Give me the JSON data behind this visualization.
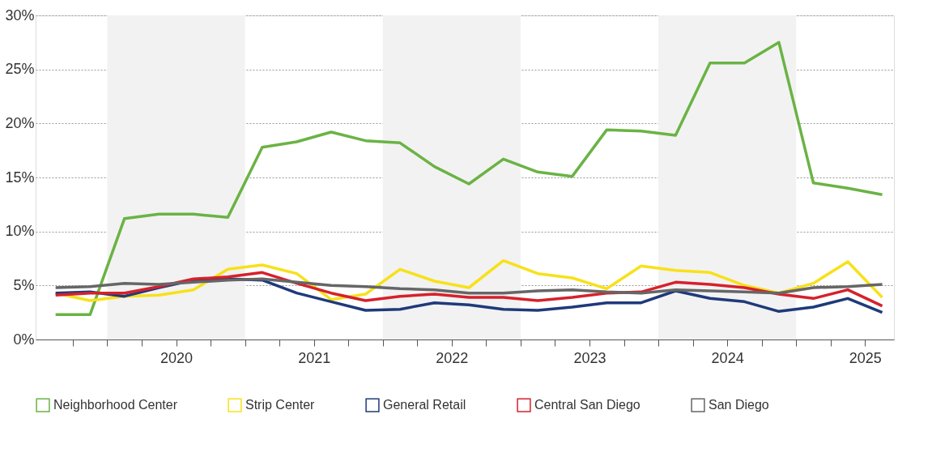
{
  "chart_data": {
    "type": "line",
    "x": [
      2019.625,
      2019.875,
      2020.125,
      2020.375,
      2020.625,
      2020.875,
      2021.125,
      2021.375,
      2021.625,
      2021.875,
      2022.125,
      2022.375,
      2022.625,
      2022.875,
      2023.125,
      2023.375,
      2023.625,
      2023.875,
      2024.125,
      2024.375,
      2024.625,
      2024.875,
      2025.125,
      2025.375,
      2025.625
    ],
    "series": [
      {
        "name": "Neighborhood Center",
        "color": "#6ab344",
        "values": [
          2.3,
          2.3,
          11.2,
          11.6,
          11.6,
          11.3,
          17.8,
          18.3,
          19.2,
          18.4,
          18.2,
          16.0,
          14.4,
          16.7,
          15.5,
          15.1,
          19.4,
          19.3,
          18.9,
          25.6,
          25.6,
          27.5,
          14.5,
          14.0,
          13.4
        ]
      },
      {
        "name": "Strip Center",
        "color": "#f7e11a",
        "values": [
          4.3,
          3.6,
          4.0,
          4.1,
          4.6,
          6.5,
          6.9,
          6.1,
          3.7,
          4.2,
          6.5,
          5.4,
          4.8,
          7.3,
          6.1,
          5.7,
          4.7,
          6.8,
          6.4,
          6.2,
          5.0,
          4.3,
          5.2,
          7.2,
          3.9
        ]
      },
      {
        "name": "General Retail",
        "color": "#1f3a7a",
        "values": [
          4.3,
          4.4,
          4.0,
          4.8,
          5.5,
          5.6,
          5.5,
          4.3,
          3.5,
          2.7,
          2.8,
          3.4,
          3.2,
          2.8,
          2.7,
          3.0,
          3.4,
          3.4,
          4.5,
          3.8,
          3.5,
          2.6,
          3.0,
          3.8,
          2.5
        ]
      },
      {
        "name": "Central San Diego",
        "color": "#d6212b",
        "values": [
          4.1,
          4.3,
          4.3,
          4.9,
          5.6,
          5.8,
          6.2,
          5.2,
          4.3,
          3.6,
          4.0,
          4.2,
          3.9,
          3.9,
          3.6,
          3.9,
          4.3,
          4.4,
          5.3,
          5.1,
          4.8,
          4.2,
          3.8,
          4.6,
          3.1
        ]
      },
      {
        "name": "San Diego",
        "color": "#666666",
        "values": [
          4.8,
          4.9,
          5.2,
          5.1,
          5.3,
          5.5,
          5.6,
          5.3,
          5.0,
          4.9,
          4.7,
          4.6,
          4.3,
          4.3,
          4.5,
          4.6,
          4.4,
          4.3,
          4.6,
          4.5,
          4.4,
          4.3,
          4.8,
          4.9,
          5.1
        ]
      }
    ],
    "xlim": [
      2019.48,
      2025.71
    ],
    "xticks": [
      {
        "value": 2019.75,
        "label": null
      },
      {
        "value": 2020,
        "label": null
      },
      {
        "value": 2020.25,
        "label": null
      },
      {
        "value": 2020.5,
        "label": "2020"
      },
      {
        "value": 2020.75,
        "label": null
      },
      {
        "value": 2021,
        "label": null
      },
      {
        "value": 2021.25,
        "label": null
      },
      {
        "value": 2021.5,
        "label": "2021"
      },
      {
        "value": 2021.75,
        "label": null
      },
      {
        "value": 2022,
        "label": null
      },
      {
        "value": 2022.25,
        "label": null
      },
      {
        "value": 2022.5,
        "label": "2022"
      },
      {
        "value": 2022.75,
        "label": null
      },
      {
        "value": 2023,
        "label": null
      },
      {
        "value": 2023.25,
        "label": null
      },
      {
        "value": 2023.5,
        "label": "2023"
      },
      {
        "value": 2023.75,
        "label": null
      },
      {
        "value": 2024,
        "label": null
      },
      {
        "value": 2024.25,
        "label": null
      },
      {
        "value": 2024.5,
        "label": "2024"
      },
      {
        "value": 2024.75,
        "label": null
      },
      {
        "value": 2025,
        "label": null
      },
      {
        "value": 2025.25,
        "label": null
      },
      {
        "value": 2025.5,
        "label": "2025"
      }
    ],
    "ylim": [
      0,
      30
    ],
    "yticks": [
      {
        "value": 0,
        "label": "0%"
      },
      {
        "value": 5,
        "label": "5%"
      },
      {
        "value": 10,
        "label": "10%"
      },
      {
        "value": 15,
        "label": "15%"
      },
      {
        "value": 20,
        "label": "20%"
      },
      {
        "value": 25,
        "label": "25%"
      },
      {
        "value": 30,
        "label": "30%"
      }
    ],
    "bands": [
      {
        "axis": "x",
        "from": 2020,
        "to": 2021,
        "color": "#f2f2f2"
      },
      {
        "axis": "x",
        "from": 2022,
        "to": 2023,
        "color": "#f2f2f2"
      },
      {
        "axis": "x",
        "from": 2024,
        "to": 2025,
        "color": "#f2f2f2"
      }
    ],
    "grid": "y",
    "legend": "bottom",
    "marker": "none",
    "line_style": "solid"
  }
}
